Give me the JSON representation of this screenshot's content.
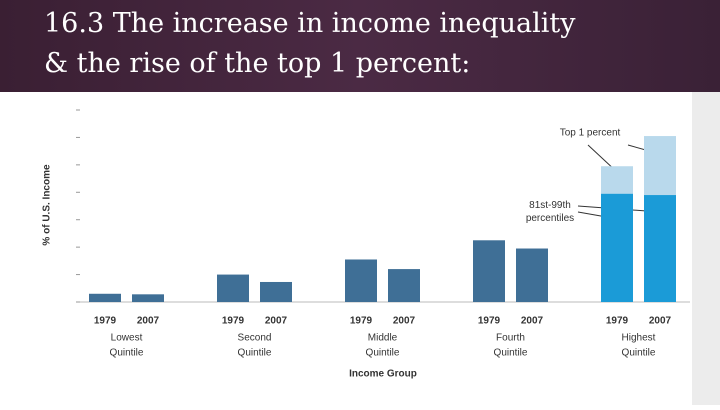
{
  "chart_data": {
    "type": "bar",
    "title": "16.3 The increase in income inequality & the rise of the top 1 percent:",
    "ylabel": "% of U.S. Income",
    "xlabel": "Income Group",
    "groups": [
      [
        "Lowest",
        "Quintile"
      ],
      [
        "Second",
        "Quintile"
      ],
      [
        "Middle",
        "Quintile"
      ],
      [
        "Fourth",
        "Quintile"
      ],
      [
        "Highest",
        "Quintile"
      ]
    ],
    "categories": [
      "1979",
      "2007",
      "1979",
      "2007",
      "1979",
      "2007",
      "1979",
      "2007",
      "1979",
      "2007"
    ],
    "series": [
      {
        "color": "#3f6f96",
        "values": [
          3.0,
          2.8,
          10.0,
          7.3,
          15.5,
          12.0,
          22.5,
          19.5,
          null,
          null
        ]
      },
      {
        "name": "81st-99th percentiles",
        "color": "#1b9bd7",
        "values": [
          null,
          null,
          null,
          null,
          null,
          null,
          null,
          null,
          39.5,
          39.0
        ]
      },
      {
        "name": "Top 1 percent",
        "color": "#b9d9ec",
        "values": [
          null,
          null,
          null,
          null,
          null,
          null,
          null,
          null,
          10.0,
          21.5
        ]
      }
    ],
    "stacked": true,
    "ylim": [
      0,
      70
    ],
    "yticks": [
      0,
      10,
      20,
      30,
      40,
      50,
      60,
      70
    ]
  }
}
